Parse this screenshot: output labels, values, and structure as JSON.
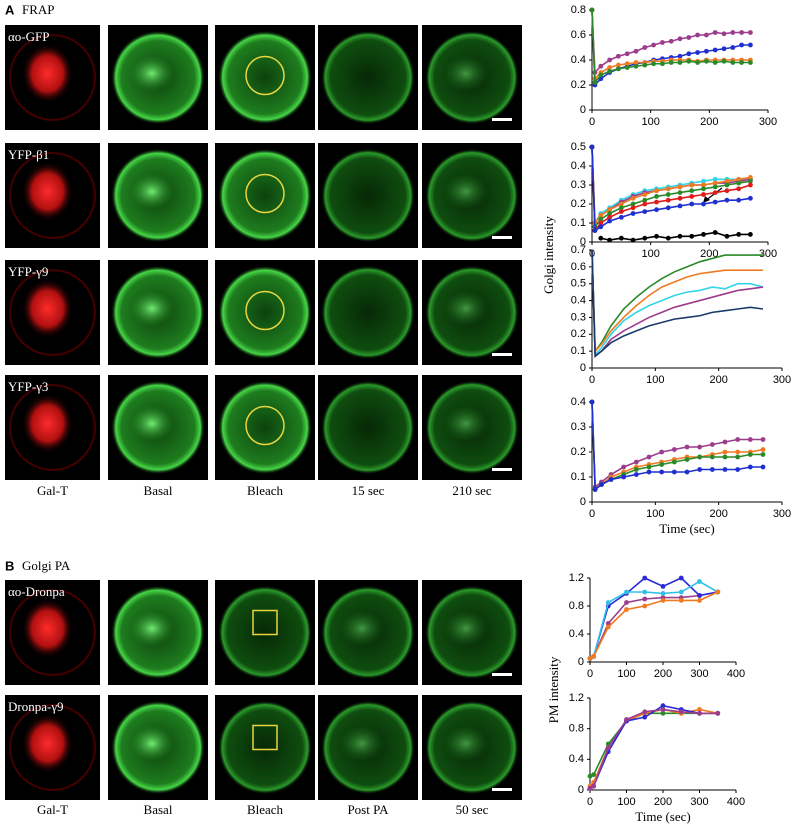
{
  "figure": {
    "panel_a": {
      "letter": "A",
      "title": "FRAP",
      "rows": [
        "αo-GFP",
        "YFP-β1",
        "YFP-γ9",
        "YFP-γ3"
      ],
      "columns": [
        "Gal-T",
        "Basal",
        "Bleach",
        "15 sec",
        "210 sec"
      ]
    },
    "panel_b": {
      "letter": "B",
      "title": "Golgi PA",
      "rows": [
        "αo-Dronpa",
        "Dronpa-γ9"
      ],
      "columns": [
        "Gal-T",
        "Basal",
        "Bleach",
        "Post PA",
        "50 sec"
      ]
    },
    "golgi_ylabel": "Golgi intensity",
    "pm_ylabel": "PM intensity"
  },
  "chart_data": [
    {
      "type": "line",
      "x": [
        0,
        5,
        15,
        30,
        45,
        60,
        75,
        90,
        105,
        120,
        135,
        150,
        165,
        180,
        195,
        210,
        225,
        240,
        255,
        270
      ],
      "xlim": [
        0,
        300
      ],
      "xticks": [
        0,
        100,
        200,
        300
      ],
      "ylim": [
        0,
        0.8
      ],
      "yticks": [
        0,
        0.2,
        0.4,
        0.6,
        0.8
      ],
      "markers": true,
      "series": [
        {
          "color": "#9b3c8c",
          "values": [
            0.8,
            0.3,
            0.35,
            0.4,
            0.43,
            0.45,
            0.47,
            0.5,
            0.52,
            0.54,
            0.55,
            0.57,
            0.58,
            0.6,
            0.6,
            0.62,
            0.61,
            0.62,
            0.62,
            0.62
          ]
        },
        {
          "color": "#1f2fd0",
          "values": [
            0.8,
            0.2,
            0.25,
            0.3,
            0.33,
            0.35,
            0.37,
            0.38,
            0.4,
            0.41,
            0.42,
            0.43,
            0.45,
            0.46,
            0.47,
            0.48,
            0.49,
            0.5,
            0.52,
            0.52
          ]
        },
        {
          "color": "#f07a22",
          "values": [
            0.8,
            0.25,
            0.3,
            0.34,
            0.36,
            0.37,
            0.38,
            0.38,
            0.39,
            0.39,
            0.4,
            0.4,
            0.4,
            0.39,
            0.4,
            0.4,
            0.4,
            0.4,
            0.4,
            0.4
          ]
        },
        {
          "color": "#2a8a2a",
          "values": [
            0.8,
            0.22,
            0.28,
            0.31,
            0.33,
            0.34,
            0.35,
            0.36,
            0.37,
            0.37,
            0.38,
            0.38,
            0.39,
            0.38,
            0.39,
            0.38,
            0.39,
            0.38,
            0.38,
            0.38
          ]
        }
      ]
    },
    {
      "type": "line",
      "x": [
        0,
        5,
        15,
        30,
        50,
        70,
        90,
        110,
        130,
        150,
        170,
        190,
        210,
        230,
        250,
        270
      ],
      "xlim": [
        0,
        300
      ],
      "xticks": [
        0,
        100,
        200,
        300
      ],
      "ylim": [
        0,
        0.5
      ],
      "yticks": [
        0,
        0.1,
        0.2,
        0.3,
        0.4,
        0.5
      ],
      "markers": true,
      "series": [
        {
          "color": "#33d6e8",
          "values": [
            0.5,
            0.1,
            0.15,
            0.18,
            0.22,
            0.25,
            0.27,
            0.28,
            0.29,
            0.3,
            0.31,
            0.32,
            0.33,
            0.33,
            0.33,
            0.33
          ]
        },
        {
          "color": "#9b3c8c",
          "values": [
            0.5,
            0.1,
            0.14,
            0.17,
            0.21,
            0.24,
            0.26,
            0.27,
            0.28,
            0.29,
            0.3,
            0.3,
            0.31,
            0.31,
            0.32,
            0.33
          ]
        },
        {
          "color": "#f07a22",
          "values": [
            0.5,
            0.1,
            0.14,
            0.17,
            0.2,
            0.23,
            0.25,
            0.27,
            0.28,
            0.29,
            0.3,
            0.3,
            0.31,
            0.32,
            0.33,
            0.34
          ]
        },
        {
          "color": "#2a8a2a",
          "values": [
            0.5,
            0.08,
            0.12,
            0.15,
            0.18,
            0.2,
            0.22,
            0.24,
            0.25,
            0.26,
            0.27,
            0.28,
            0.29,
            0.3,
            0.31,
            0.32
          ]
        },
        {
          "color": "#e01b1b",
          "values": [
            0.5,
            0.06,
            0.1,
            0.13,
            0.16,
            0.18,
            0.2,
            0.21,
            0.22,
            0.23,
            0.24,
            0.25,
            0.26,
            0.27,
            0.28,
            0.3
          ]
        },
        {
          "color": "#1f2fd0",
          "values": [
            0.5,
            0.06,
            0.08,
            0.11,
            0.13,
            0.15,
            0.16,
            0.17,
            0.18,
            0.19,
            0.2,
            0.2,
            0.21,
            0.22,
            0.22,
            0.23
          ]
        },
        {
          "color": "#000000",
          "values": [
            null,
            null,
            0.02,
            0.01,
            0.02,
            0.01,
            0.02,
            0.03,
            0.02,
            0.03,
            0.03,
            0.04,
            0.05,
            0.03,
            0.04,
            0.04
          ]
        }
      ]
    },
    {
      "type": "line",
      "x": [
        0,
        5,
        15,
        30,
        50,
        70,
        90,
        110,
        130,
        150,
        170,
        190,
        210,
        230,
        250,
        270
      ],
      "xlim": [
        0,
        300
      ],
      "xticks": [
        0,
        100,
        200,
        300
      ],
      "ylim": [
        0,
        0.7
      ],
      "yticks": [
        0,
        0.1,
        0.2,
        0.3,
        0.4,
        0.5,
        0.6,
        0.7
      ],
      "markers": false,
      "series": [
        {
          "color": "#2a8a2a",
          "values": [
            0.7,
            0.1,
            0.15,
            0.25,
            0.35,
            0.42,
            0.48,
            0.53,
            0.57,
            0.6,
            0.63,
            0.65,
            0.67,
            0.67,
            0.67,
            0.67
          ]
        },
        {
          "color": "#f07a22",
          "values": [
            0.7,
            0.1,
            0.14,
            0.22,
            0.3,
            0.37,
            0.43,
            0.48,
            0.51,
            0.54,
            0.56,
            0.57,
            0.58,
            0.58,
            0.58,
            0.58
          ]
        },
        {
          "color": "#33d6e8",
          "values": [
            0.7,
            0.08,
            0.12,
            0.2,
            0.28,
            0.33,
            0.37,
            0.4,
            0.43,
            0.45,
            0.46,
            0.48,
            0.47,
            0.5,
            0.5,
            0.48
          ]
        },
        {
          "color": "#9b3c8c",
          "values": [
            0.7,
            0.07,
            0.1,
            0.17,
            0.22,
            0.26,
            0.3,
            0.33,
            0.36,
            0.38,
            0.4,
            0.42,
            0.44,
            0.46,
            0.47,
            0.48
          ]
        },
        {
          "color": "#1b3a6b",
          "values": [
            0.7,
            0.07,
            0.1,
            0.15,
            0.19,
            0.22,
            0.25,
            0.27,
            0.29,
            0.3,
            0.31,
            0.33,
            0.34,
            0.35,
            0.36,
            0.35
          ]
        }
      ]
    },
    {
      "type": "line",
      "x": [
        0,
        5,
        15,
        30,
        50,
        70,
        90,
        110,
        130,
        150,
        170,
        190,
        210,
        230,
        250,
        270
      ],
      "xlim": [
        0,
        300
      ],
      "xticks": [
        0,
        100,
        200,
        300
      ],
      "ylim": [
        0,
        0.4
      ],
      "yticks": [
        0,
        0.1,
        0.2,
        0.3,
        0.4
      ],
      "markers": true,
      "xlabel": "Time (sec)",
      "series": [
        {
          "color": "#9b3c8c",
          "values": [
            0.4,
            0.06,
            0.08,
            0.11,
            0.14,
            0.16,
            0.18,
            0.2,
            0.21,
            0.22,
            0.22,
            0.23,
            0.24,
            0.25,
            0.25,
            0.25
          ]
        },
        {
          "color": "#f07a22",
          "values": [
            0.4,
            0.05,
            0.07,
            0.1,
            0.12,
            0.14,
            0.15,
            0.16,
            0.17,
            0.18,
            0.18,
            0.19,
            0.2,
            0.2,
            0.2,
            0.21
          ]
        },
        {
          "color": "#2a8a2a",
          "values": [
            0.4,
            0.05,
            0.07,
            0.09,
            0.11,
            0.13,
            0.14,
            0.15,
            0.16,
            0.17,
            0.18,
            0.18,
            0.18,
            0.18,
            0.19,
            0.19
          ]
        },
        {
          "color": "#1f2fd0",
          "values": [
            0.4,
            0.05,
            0.07,
            0.09,
            0.1,
            0.11,
            0.12,
            0.12,
            0.12,
            0.12,
            0.13,
            0.13,
            0.13,
            0.13,
            0.14,
            0.14
          ]
        }
      ]
    },
    {
      "type": "line",
      "x": [
        0,
        10,
        50,
        100,
        150,
        200,
        250,
        300,
        350
      ],
      "xlim": [
        0,
        400
      ],
      "xticks": [
        0,
        100,
        200,
        300,
        400
      ],
      "ylim": [
        0,
        1.2
      ],
      "yticks": [
        0,
        0.4,
        0.8,
        1.2
      ],
      "markers": true,
      "series": [
        {
          "color": "#9b3c8c",
          "values": [
            0.05,
            0.08,
            0.55,
            0.85,
            0.9,
            0.92,
            0.92,
            0.95,
            1.0
          ]
        },
        {
          "color": "#2a2ad8",
          "values": [
            0.05,
            0.08,
            0.8,
            0.98,
            1.2,
            1.08,
            1.2,
            0.95,
            1.0
          ]
        },
        {
          "color": "#33c0e8",
          "values": [
            0.05,
            0.08,
            0.85,
            1.0,
            1.0,
            0.98,
            1.0,
            1.15,
            1.0
          ]
        },
        {
          "color": "#f07a22",
          "values": [
            0.05,
            0.08,
            0.5,
            0.75,
            0.8,
            0.88,
            0.88,
            0.88,
            1.0
          ]
        }
      ]
    },
    {
      "type": "line",
      "x": [
        0,
        10,
        50,
        100,
        150,
        200,
        250,
        300,
        350
      ],
      "xlim": [
        0,
        400
      ],
      "xticks": [
        0,
        100,
        200,
        300,
        400
      ],
      "ylim": [
        0,
        1.2
      ],
      "yticks": [
        0,
        0.4,
        0.8,
        1.2
      ],
      "markers": true,
      "xlabel": "Time (sec)",
      "series": [
        {
          "color": "#2a8a2a",
          "values": [
            0.18,
            0.2,
            0.6,
            0.9,
            1.0,
            1.0,
            1.0,
            1.0,
            1.0
          ]
        },
        {
          "color": "#f07a22",
          "values": [
            0.05,
            0.1,
            0.55,
            0.9,
            1.0,
            1.05,
            1.0,
            1.05,
            1.0
          ]
        },
        {
          "color": "#2a2ad8",
          "values": [
            0.02,
            0.05,
            0.5,
            0.9,
            0.95,
            1.1,
            1.05,
            1.0,
            1.0
          ]
        },
        {
          "color": "#9b3c8c",
          "values": [
            0.02,
            0.05,
            0.55,
            0.92,
            1.02,
            1.05,
            1.02,
            1.0,
            1.0
          ]
        }
      ]
    }
  ]
}
